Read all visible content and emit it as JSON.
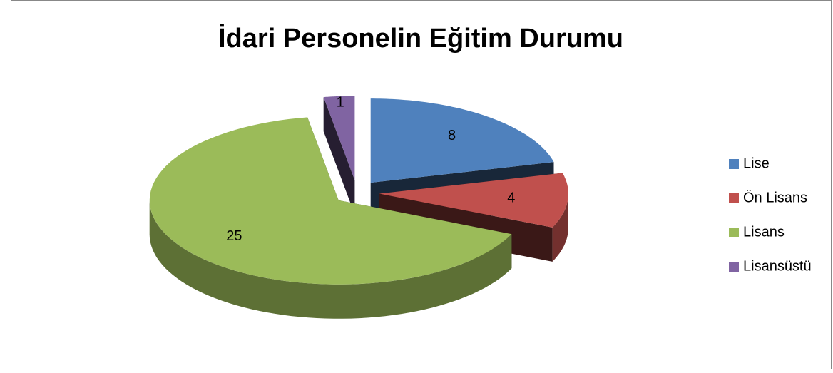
{
  "chart_data": {
    "type": "pie",
    "title": "İdari Personelin Eğitim Durumu",
    "categories": [
      "Lise",
      "Ön Lisans",
      "Lisans",
      "Lisansüstü"
    ],
    "values": [
      8,
      4,
      25,
      1
    ],
    "colors": [
      "#4f81bd",
      "#c0504d",
      "#9bbb59",
      "#8064a2"
    ],
    "legend": "right"
  }
}
